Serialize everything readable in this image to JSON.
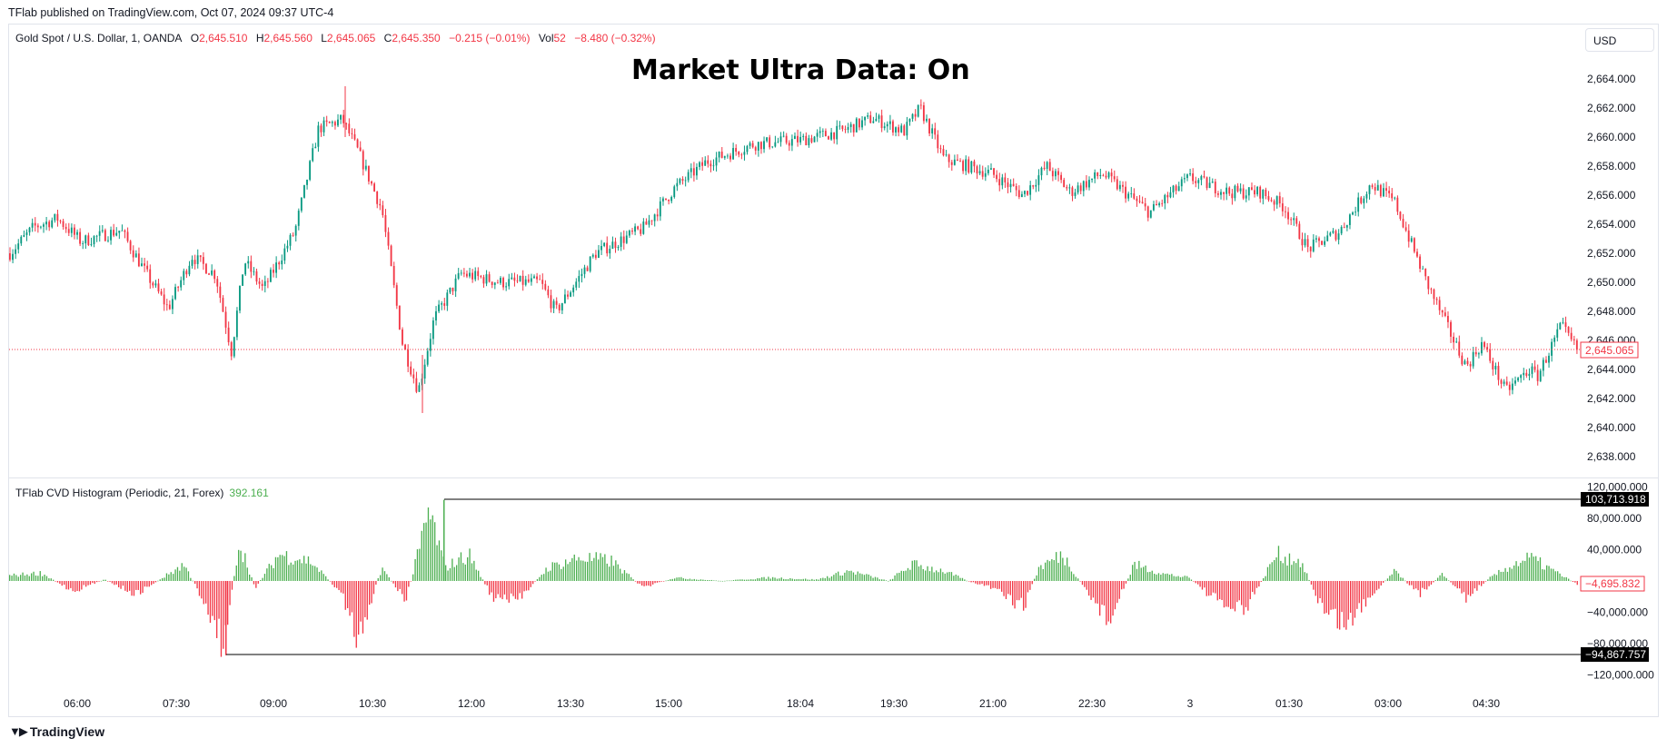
{
  "header": {
    "published_by": "TFlab published on TradingView.com, Oct 07, 2024 09:37 UTC-4"
  },
  "symbol_legend": {
    "name": "Gold Spot / U.S. Dollar, 1, OANDA",
    "o_label": "O",
    "o_value": "2,645.510",
    "h_label": "H",
    "h_value": "2,645.560",
    "l_label": "L",
    "l_value": "2,645.065",
    "c_label": "C",
    "c_value": "2,645.350",
    "change": "−0.215 (−0.01%)",
    "vol_label": "Vol",
    "vol_value": "52",
    "vol_change": "−8.480 (−0.32%)"
  },
  "currency": "USD",
  "overlay_title": "Market Ultra Data: On",
  "colors": {
    "up": "#089981",
    "down": "#f23645",
    "hist_up": "#4caf50",
    "hist_down": "#f23645",
    "up_text": "#4caf50"
  },
  "price_axis": {
    "labels": [
      "2,664.000",
      "2,662.000",
      "2,660.000",
      "2,658.000",
      "2,656.000",
      "2,654.000",
      "2,652.000",
      "2,650.000",
      "2,648.000",
      "2,646.000",
      "2,644.000",
      "2,642.000",
      "2,640.000",
      "2,638.000"
    ],
    "current_price": "2,645.065"
  },
  "cvd": {
    "title": "TFlab CVD Histogram (Periodic, 21, Forex)",
    "value": "392.161",
    "axis_labels": [
      "120,000.000",
      "80,000.000",
      "40,000.000",
      "−40,000.000",
      "−80,000.000",
      "−120,000.000"
    ],
    "max_tag": "103,713.918",
    "min_tag": "−94,867.757",
    "current_tag": "−4,695.832"
  },
  "time_axis": [
    "06:00",
    "07:30",
    "09:00",
    "10:30",
    "12:00",
    "13:30",
    "15:00",
    "18:04",
    "19:30",
    "21:00",
    "22:30",
    "3",
    "01:30",
    "03:00",
    "04:30"
  ],
  "footer": {
    "logo_text": "TradingView",
    "logo_icon": "tradingview-logo-icon"
  },
  "chart_data": {
    "type": "candlestick",
    "title": "Gold Spot / U.S. Dollar, 1, OANDA",
    "ylim": [
      2637,
      2665
    ],
    "price_path": [
      [
        0,
        2652.0
      ],
      [
        0.015,
        2653.8
      ],
      [
        0.03,
        2654.4
      ],
      [
        0.045,
        2652.8
      ],
      [
        0.07,
        2653.6
      ],
      [
        0.085,
        2650.8
      ],
      [
        0.1,
        2648.2
      ],
      [
        0.115,
        2651.8
      ],
      [
        0.13,
        2650.5
      ],
      [
        0.14,
        2645.2
      ],
      [
        0.148,
        2651.5
      ],
      [
        0.16,
        2649.5
      ],
      [
        0.18,
        2653.5
      ],
      [
        0.195,
        2660.6
      ],
      [
        0.21,
        2661.2
      ],
      [
        0.22,
        2659.0
      ],
      [
        0.235,
        2655.0
      ],
      [
        0.248,
        2645.8
      ],
      [
        0.258,
        2642.5
      ],
      [
        0.268,
        2647.5
      ],
      [
        0.285,
        2650.6
      ],
      [
        0.31,
        2650.0
      ],
      [
        0.335,
        2650.0
      ],
      [
        0.345,
        2648.0
      ],
      [
        0.37,
        2652.0
      ],
      [
        0.4,
        2653.7
      ],
      [
        0.42,
        2656.5
      ],
      [
        0.44,
        2658.3
      ],
      [
        0.47,
        2659.5
      ],
      [
        0.5,
        2659.8
      ],
      [
        0.525,
        2660.4
      ],
      [
        0.545,
        2661.3
      ],
      [
        0.565,
        2660.4
      ],
      [
        0.575,
        2662.0
      ],
      [
        0.59,
        2658.5
      ],
      [
        0.62,
        2657.5
      ],
      [
        0.64,
        2656.0
      ],
      [
        0.655,
        2658.0
      ],
      [
        0.67,
        2656.2
      ],
      [
        0.69,
        2657.5
      ],
      [
        0.72,
        2654.8
      ],
      [
        0.745,
        2657.2
      ],
      [
        0.77,
        2656.2
      ],
      [
        0.79,
        2656.2
      ],
      [
        0.805,
        2655.2
      ],
      [
        0.82,
        2652.3
      ],
      [
        0.84,
        2653.5
      ],
      [
        0.86,
        2656.8
      ],
      [
        0.875,
        2655.5
      ],
      [
        0.895,
        2650.0
      ],
      [
        0.91,
        2646.5
      ],
      [
        0.92,
        2644.2
      ],
      [
        0.93,
        2645.8
      ],
      [
        0.945,
        2642.5
      ],
      [
        0.96,
        2644.0
      ],
      [
        0.965,
        2643.5
      ],
      [
        0.98,
        2647.0
      ],
      [
        0.99,
        2645.35
      ]
    ],
    "price_extremes": {
      "high": 2663.5,
      "low": 2641.0
    },
    "cvd_histogram_path": [
      [
        0,
        8000
      ],
      [
        0.02,
        12000
      ],
      [
        0.04,
        -15000
      ],
      [
        0.06,
        2000
      ],
      [
        0.08,
        -20000
      ],
      [
        0.1,
        10000
      ],
      [
        0.11,
        25000
      ],
      [
        0.125,
        -40000
      ],
      [
        0.135,
        -94867.757
      ],
      [
        0.145,
        60000
      ],
      [
        0.155,
        -10000
      ],
      [
        0.17,
        40000
      ],
      [
        0.19,
        30000
      ],
      [
        0.21,
        -20000
      ],
      [
        0.22,
        -85000
      ],
      [
        0.235,
        20000
      ],
      [
        0.25,
        -30000
      ],
      [
        0.265,
        103713.918
      ],
      [
        0.275,
        20000
      ],
      [
        0.29,
        40000
      ],
      [
        0.305,
        -25000
      ],
      [
        0.32,
        -30000
      ],
      [
        0.34,
        20000
      ],
      [
        0.36,
        35000
      ],
      [
        0.38,
        30000
      ],
      [
        0.4,
        -10000
      ],
      [
        0.42,
        5000
      ],
      [
        0.45,
        0
      ],
      [
        0.48,
        5000
      ],
      [
        0.51,
        2000
      ],
      [
        0.53,
        15000
      ],
      [
        0.555,
        0
      ],
      [
        0.57,
        25000
      ],
      [
        0.59,
        15000
      ],
      [
        0.605,
        0
      ],
      [
        0.62,
        -10000
      ],
      [
        0.64,
        -40000
      ],
      [
        0.65,
        20000
      ],
      [
        0.665,
        40000
      ],
      [
        0.68,
        -15000
      ],
      [
        0.695,
        -60000
      ],
      [
        0.71,
        25000
      ],
      [
        0.73,
        10000
      ],
      [
        0.745,
        5000
      ],
      [
        0.765,
        -35000
      ],
      [
        0.78,
        -45000
      ],
      [
        0.8,
        40000
      ],
      [
        0.815,
        30000
      ],
      [
        0.83,
        -45000
      ],
      [
        0.845,
        -65000
      ],
      [
        0.86,
        -20000
      ],
      [
        0.875,
        15000
      ],
      [
        0.89,
        -20000
      ],
      [
        0.905,
        10000
      ],
      [
        0.92,
        -25000
      ],
      [
        0.935,
        5000
      ],
      [
        0.95,
        25000
      ],
      [
        0.96,
        35000
      ],
      [
        0.99,
        -4695.832
      ]
    ],
    "cvd_ylim": [
      -125000,
      125000
    ]
  }
}
